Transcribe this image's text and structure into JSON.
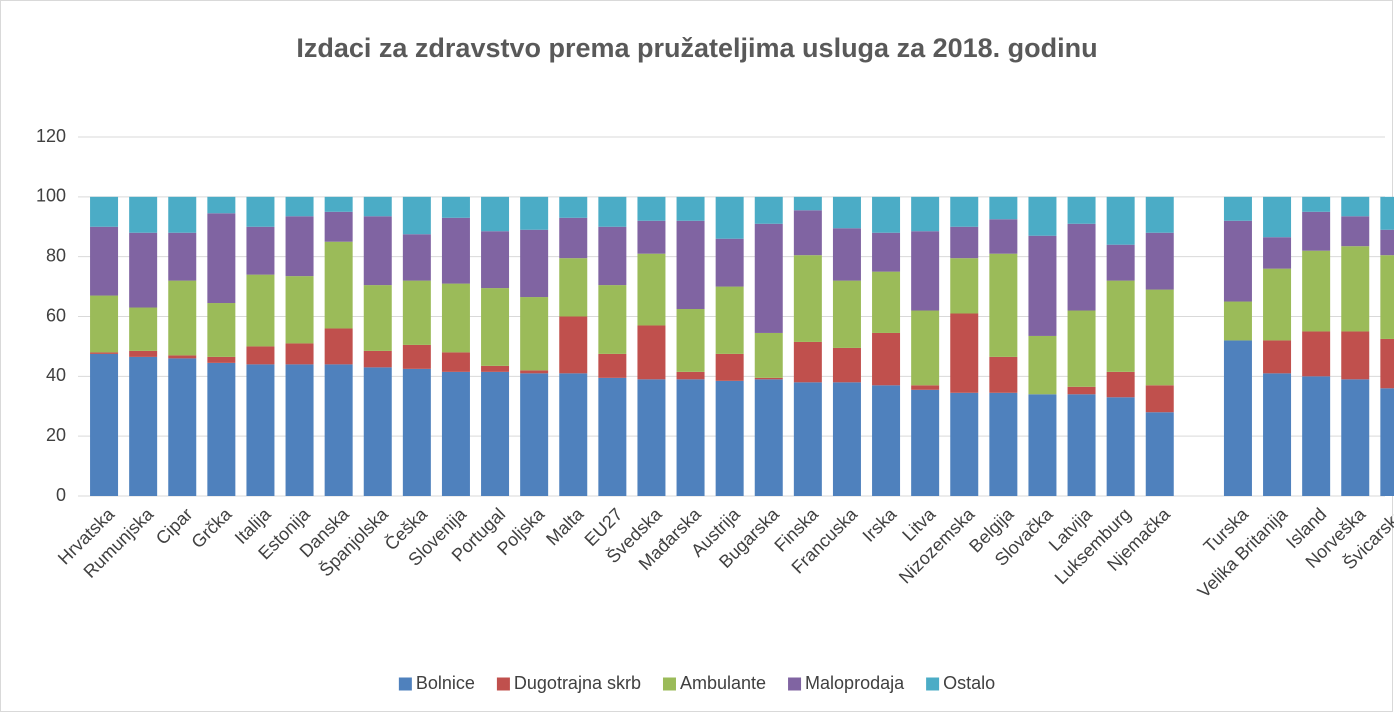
{
  "chart_data": {
    "type": "stacked_bar",
    "title": "Izdaci za zdravstvo prema pružateljima usluga za 2018. godinu",
    "categories": [
      "Hrvatska",
      "Rumunjska",
      "Cipar",
      "Grčka",
      "Italija",
      "Estonija",
      "Danska",
      "Španjolska",
      "Češka",
      "Slovenija",
      "Portugal",
      "Poljska",
      "Malta",
      "EU27",
      "Švedska",
      "Mađarska",
      "Austrija",
      "Bugarska",
      "Finska",
      "Francuska",
      "Irska",
      "Litva",
      "Nizozemska",
      "Belgija",
      "Slovačka",
      "Latvija",
      "Luksemburg",
      "Njemačka",
      null,
      "Turska",
      "Velika Britanija",
      "Island",
      "Norveška",
      "Švicarska"
    ],
    "series": [
      {
        "name": "Bolnice",
        "color": "#4f81bd",
        "values": [
          47.5,
          46.5,
          46,
          44.5,
          44,
          44,
          44,
          43,
          42.5,
          41.5,
          41.5,
          41,
          41,
          39.5,
          39,
          39,
          38.5,
          39,
          38,
          38,
          37,
          35.5,
          34.5,
          34.5,
          34,
          34,
          33,
          28,
          null,
          52,
          41,
          40,
          39,
          36
        ]
      },
      {
        "name": "Dugotrajna skrb",
        "color": "#c0504d",
        "values": [
          0.5,
          2,
          1,
          2,
          6,
          7,
          12,
          5.5,
          8,
          6.5,
          2,
          1,
          19,
          8,
          18,
          2.5,
          9,
          0.5,
          13.5,
          11.5,
          17.5,
          1.5,
          26.5,
          12,
          0,
          2.5,
          8.5,
          9,
          null,
          0,
          11,
          15,
          16,
          16.5
        ]
      },
      {
        "name": "Ambulante",
        "color": "#9bbb59",
        "values": [
          19,
          14.5,
          25,
          18,
          24,
          22.5,
          29,
          22,
          21.5,
          23,
          26,
          24.5,
          19.5,
          23,
          24,
          21,
          22.5,
          15,
          29,
          22.5,
          20.5,
          25,
          18.5,
          34.5,
          19.5,
          25.5,
          30.5,
          32,
          null,
          13,
          24,
          27,
          28.5,
          28
        ]
      },
      {
        "name": "Maloprodaja",
        "color": "#8064a2",
        "values": [
          23,
          25,
          16,
          30,
          16,
          20,
          10,
          23,
          15.5,
          22,
          19,
          22.5,
          13.5,
          19.5,
          11,
          29.5,
          16,
          36.5,
          15,
          17.5,
          13,
          26.5,
          10.5,
          11.5,
          33.5,
          29,
          12,
          19,
          null,
          27,
          10.5,
          13,
          10,
          8.5
        ]
      },
      {
        "name": "Ostalo",
        "color": "#4bacc6",
        "values": [
          10,
          12,
          12,
          5.5,
          10,
          6.5,
          5,
          6.5,
          12.5,
          7,
          11.5,
          11,
          7,
          10,
          8,
          8,
          14,
          9,
          4.5,
          10.5,
          12,
          11.5,
          10,
          7.5,
          13,
          9,
          16,
          12,
          null,
          8,
          13.5,
          5,
          6.5,
          11
        ]
      }
    ],
    "ylim": [
      0,
      120
    ],
    "yticks": [
      0,
      20,
      40,
      60,
      80,
      100,
      120
    ],
    "grid": true,
    "legend": "bottom"
  }
}
